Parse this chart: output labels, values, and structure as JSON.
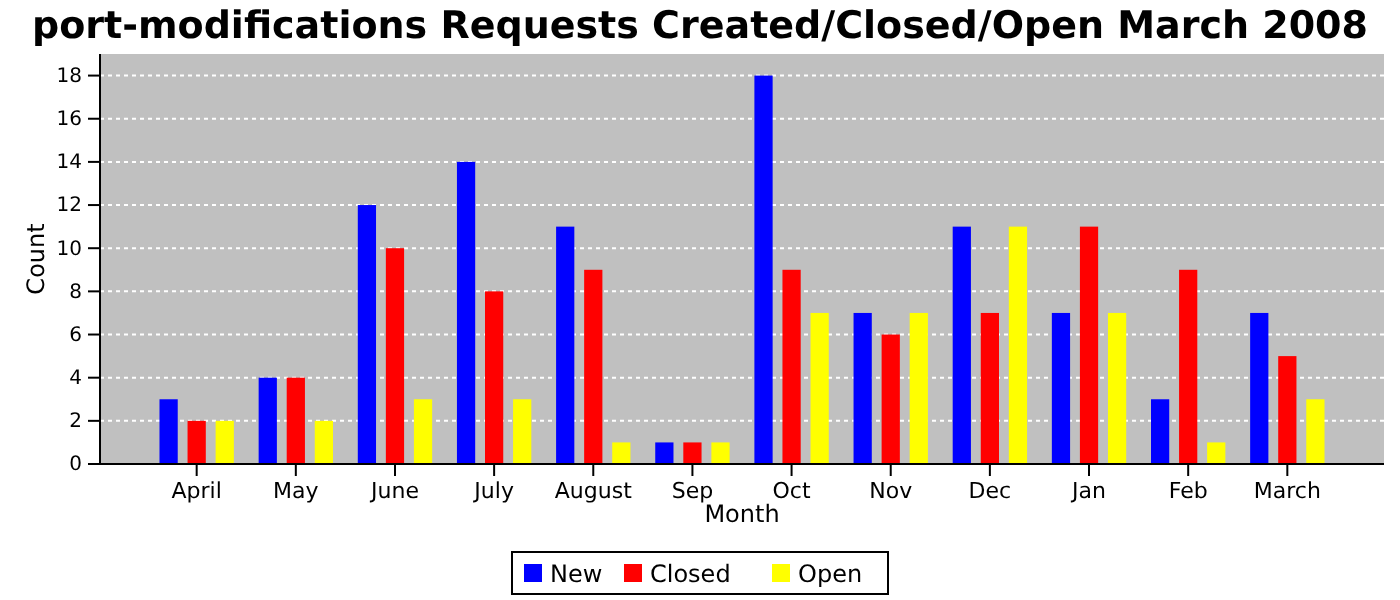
{
  "chart_data": {
    "type": "bar",
    "title": "port-modifications Requests Created/Closed/Open March 2008",
    "xlabel": "Month",
    "ylabel": "Count",
    "categories": [
      "April",
      "May",
      "June",
      "July",
      "August",
      "Sep",
      "Oct",
      "Nov",
      "Dec",
      "Jan",
      "Feb",
      "March"
    ],
    "series": [
      {
        "name": "New",
        "color": "#0000ff",
        "values": [
          3,
          4,
          12,
          14,
          11,
          1,
          18,
          7,
          11,
          7,
          3,
          7
        ]
      },
      {
        "name": "Closed",
        "color": "#ff0000",
        "values": [
          2,
          4,
          10,
          8,
          9,
          1,
          9,
          6,
          7,
          11,
          9,
          5
        ]
      },
      {
        "name": "Open",
        "color": "#ffff00",
        "values": [
          2,
          2,
          3,
          3,
          1,
          1,
          7,
          7,
          11,
          7,
          1,
          3
        ]
      }
    ],
    "ylim": [
      0,
      19
    ],
    "yticks": [
      0,
      2,
      4,
      6,
      8,
      10,
      12,
      14,
      16,
      18
    ],
    "grid": "y",
    "legend": "bottom"
  }
}
